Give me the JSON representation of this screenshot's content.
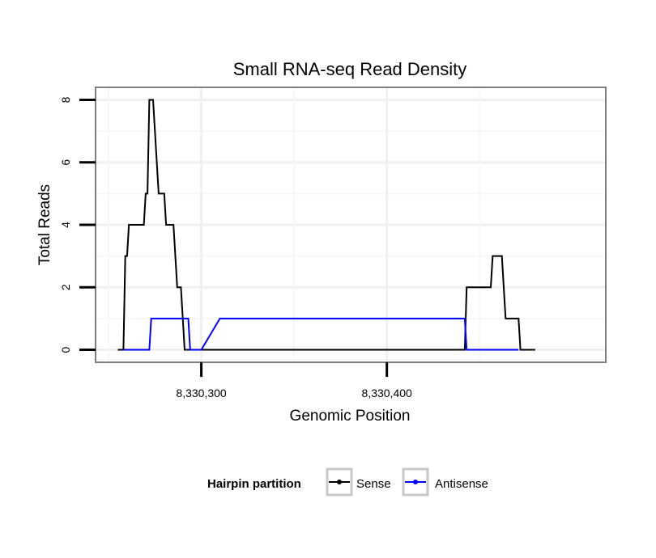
{
  "chart_data": {
    "type": "line",
    "title": "Small RNA-seq Read Density",
    "xlabel": "Genomic Position",
    "ylabel": "Total Reads",
    "xlim": [
      8330243,
      8330518
    ],
    "ylim": [
      -0.4,
      8.4
    ],
    "x_ticks": [
      {
        "value": 8330300,
        "label": "8,330,300"
      },
      {
        "value": 8330400,
        "label": "8,330,400"
      }
    ],
    "y_ticks": [
      {
        "value": 0,
        "label": "0"
      },
      {
        "value": 2,
        "label": "2"
      },
      {
        "value": 4,
        "label": "4"
      },
      {
        "value": 6,
        "label": "6"
      },
      {
        "value": 8,
        "label": "8"
      }
    ],
    "x_minor_gridlines": [
      8330250,
      8330350,
      8330450
    ],
    "y_minor_gridlines": [
      1,
      3,
      5,
      7
    ],
    "grid": true,
    "legend": {
      "title": "Hairpin partition",
      "position": "bottom"
    },
    "series": [
      {
        "name": "Sense",
        "color": "#000000",
        "x": [
          8330255,
          8330258,
          8330259,
          8330260,
          8330261,
          8330262,
          8330266,
          8330269,
          8330270,
          8330271,
          8330272,
          8330273,
          8330274,
          8330275,
          8330276,
          8330277,
          8330278,
          8330279,
          8330280,
          8330281,
          8330282,
          8330284,
          8330285,
          8330286,
          8330287,
          8330288,
          8330289,
          8330290,
          8330291,
          8330293,
          8330294,
          8330295,
          8330296,
          8330300,
          8330320,
          8330360,
          8330405,
          8330442,
          8330443,
          8330444,
          8330450,
          8330455,
          8330456,
          8330457,
          8330462,
          8330463,
          8330464,
          8330470,
          8330471,
          8330472,
          8330480
        ],
        "y": [
          0,
          0,
          3,
          3,
          4,
          4,
          4,
          4,
          5,
          5,
          8,
          8,
          8,
          7,
          6,
          5,
          5,
          5,
          5,
          4,
          4,
          4,
          4,
          3,
          2,
          2,
          2,
          1,
          0,
          0,
          0,
          0,
          0,
          0,
          0,
          0,
          0,
          0,
          2,
          2,
          2,
          2,
          2,
          3,
          3,
          2,
          1,
          1,
          1,
          0,
          0
        ]
      },
      {
        "name": "Antisense",
        "color": "#0000ff",
        "x": [
          8330258,
          8330272,
          8330273,
          8330284,
          8330285,
          8330288,
          8330293,
          8330294,
          8330295,
          8330300,
          8330310,
          8330317,
          8330318,
          8330400,
          8330442,
          8330443,
          8330470,
          8330471
        ],
        "y": [
          0,
          0,
          1,
          1,
          1,
          1,
          1,
          0,
          0,
          0,
          1,
          1,
          1,
          1,
          1,
          0,
          0,
          0
        ]
      }
    ]
  }
}
